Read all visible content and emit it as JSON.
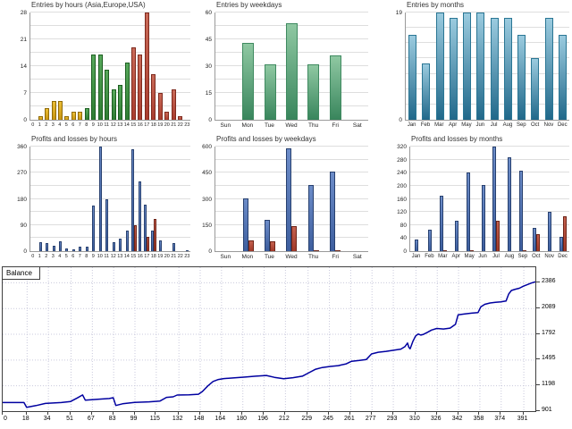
{
  "palette": {
    "asia": {
      "top": "#ebbe36",
      "bottom": "#c79410",
      "border": "#8f6a08"
    },
    "europe": {
      "top": "#57a85b",
      "bottom": "#2e7d32",
      "border": "#1c5e20"
    },
    "usa": {
      "top": "#c96a58",
      "bottom": "#a93c2e",
      "border": "#7e2a1e"
    },
    "entries_green": {
      "top": "#8fc8a2",
      "bottom": "#38855c",
      "border": "#3f8a60"
    },
    "entries_blue": {
      "top": "#9bcbdf",
      "bottom": "#20688a",
      "border": "#2a7694"
    },
    "profit_blue": {
      "top": "#6c8cc8",
      "bottom": "#3d5e9e",
      "border": "#27406f"
    },
    "loss_red": {
      "top": "#c4614f",
      "bottom": "#a03828",
      "border": "#6e2418"
    },
    "grid": "#dedede",
    "axis": "#9a9a9a",
    "balance_grid": "#c9c9dc",
    "balance_border": "#404040"
  },
  "chart_data": [
    {
      "type": "bar",
      "title": "Entries by hours (Asia,Europe,USA)",
      "categories": [
        "0",
        "1",
        "2",
        "3",
        "4",
        "5",
        "6",
        "7",
        "8",
        "9",
        "10",
        "11",
        "12",
        "13",
        "14",
        "15",
        "16",
        "17",
        "18",
        "19",
        "20",
        "21",
        "22",
        "23"
      ],
      "ymax": 28,
      "grid_steps": 8,
      "y_ticks": [
        {
          "v": 28,
          "t": "28"
        },
        {
          "v": 21,
          "t": "21"
        },
        {
          "v": 14,
          "t": "14"
        },
        {
          "v": 7,
          "t": "7"
        },
        {
          "v": 0,
          "t": "0"
        }
      ],
      "series": [
        {
          "colors": [
            "asia",
            "asia",
            "asia",
            "asia",
            "asia",
            "asia",
            "asia",
            "asia",
            "europe",
            "europe",
            "europe",
            "europe",
            "europe",
            "europe",
            "europe",
            "usa",
            "usa",
            "usa",
            "usa",
            "usa",
            "usa",
            "usa",
            "usa",
            "usa"
          ],
          "values": [
            0,
            1,
            3,
            5,
            5,
            1,
            2,
            2,
            3,
            17,
            17,
            13,
            8,
            9,
            15,
            19,
            17,
            28,
            12,
            7,
            2,
            8,
            1,
            0
          ]
        }
      ]
    },
    {
      "type": "bar",
      "title": "Entries by weekdays",
      "categories": [
        "Sun",
        "Mon",
        "Tue",
        "Wed",
        "Thu",
        "Fri",
        "Sat"
      ],
      "ymax": 60,
      "grid_steps": 8,
      "y_ticks": [
        {
          "v": 60,
          "t": "60"
        },
        {
          "v": 45,
          "t": "45"
        },
        {
          "v": 30,
          "t": "30"
        },
        {
          "v": 15,
          "t": "15"
        },
        {
          "v": 0,
          "t": "0"
        }
      ],
      "series": [
        {
          "color": "entries_green",
          "values": [
            0,
            43,
            31,
            54,
            31,
            36,
            0
          ]
        }
      ]
    },
    {
      "type": "bar",
      "title": "Entries by months",
      "categories": [
        "Jan",
        "Feb",
        "Mar",
        "Apr",
        "May",
        "Jun",
        "Jul",
        "Aug",
        "Sep",
        "Oct",
        "Nov",
        "Dec"
      ],
      "ymax": 19,
      "grid_steps": 7,
      "y_ticks": [
        {
          "v": 19,
          "t": "19"
        },
        {
          "v": 0,
          "t": "0"
        }
      ],
      "series": [
        {
          "color": "entries_blue",
          "values": [
            15,
            10,
            19,
            18,
            19,
            19,
            18,
            18,
            15,
            11,
            18,
            15
          ]
        }
      ]
    },
    {
      "type": "bar",
      "title": "Profits and losses by hours",
      "categories": [
        "0",
        "1",
        "2",
        "3",
        "4",
        "5",
        "6",
        "7",
        "8",
        "9",
        "10",
        "11",
        "12",
        "13",
        "14",
        "15",
        "16",
        "17",
        "18",
        "19",
        "20",
        "21",
        "22",
        "23"
      ],
      "ymax": 360,
      "grid_steps": 8,
      "y_ticks": [
        {
          "v": 360,
          "t": "360"
        },
        {
          "v": 270,
          "t": "270"
        },
        {
          "v": 180,
          "t": "180"
        },
        {
          "v": 90,
          "t": "90"
        },
        {
          "v": 0,
          "t": "0"
        }
      ],
      "series": [
        {
          "color": "profit_blue",
          "values": [
            0,
            32,
            28,
            18,
            33,
            10,
            6,
            14,
            16,
            158,
            360,
            178,
            30,
            44,
            70,
            352,
            240,
            160,
            72,
            38,
            0,
            28,
            0,
            4
          ]
        },
        {
          "color": "loss_red",
          "values": [
            0,
            0,
            0,
            0,
            0,
            0,
            0,
            0,
            0,
            0,
            0,
            0,
            0,
            0,
            0,
            88,
            0,
            50,
            110,
            0,
            0,
            0,
            0,
            0
          ]
        }
      ]
    },
    {
      "type": "bar",
      "title": "Profits and losses by weekdays",
      "categories": [
        "Sun",
        "Mon",
        "Tue",
        "Wed",
        "Thu",
        "Fri",
        "Sat"
      ],
      "ymax": 600,
      "grid_steps": 8,
      "y_ticks": [
        {
          "v": 600,
          "t": "600"
        },
        {
          "v": 450,
          "t": "450"
        },
        {
          "v": 300,
          "t": "300"
        },
        {
          "v": 150,
          "t": "150"
        },
        {
          "v": 0,
          "t": "0"
        }
      ],
      "series": [
        {
          "color": "profit_blue",
          "values": [
            0,
            300,
            180,
            590,
            380,
            455,
            0
          ]
        },
        {
          "color": "loss_red",
          "values": [
            0,
            60,
            55,
            145,
            4,
            6,
            0
          ]
        }
      ]
    },
    {
      "type": "bar",
      "title": "Profits and losses by months",
      "categories": [
        "Jan",
        "Feb",
        "Mar",
        "Apr",
        "May",
        "Jun",
        "Jul",
        "Aug",
        "Sep",
        "Oct",
        "Nov",
        "Dec"
      ],
      "ymax": 320,
      "grid_steps": 8,
      "y_ticks": [
        {
          "v": 320,
          "t": "320"
        },
        {
          "v": 280,
          "t": "280"
        },
        {
          "v": 240,
          "t": "240"
        },
        {
          "v": 200,
          "t": "200"
        },
        {
          "v": 160,
          "t": "160"
        },
        {
          "v": 120,
          "t": "120"
        },
        {
          "v": 80,
          "t": "80"
        },
        {
          "v": 40,
          "t": "40"
        },
        {
          "v": 0,
          "t": "0"
        }
      ],
      "series": [
        {
          "color": "profit_blue",
          "values": [
            35,
            65,
            170,
            93,
            242,
            202,
            320,
            288,
            247,
            72,
            120,
            45
          ]
        },
        {
          "color": "loss_red",
          "values": [
            0,
            0,
            3,
            0,
            3,
            0,
            93,
            0,
            3,
            52,
            0,
            108
          ]
        }
      ]
    },
    {
      "type": "line",
      "title": "Balance",
      "line_color": "#0000a0",
      "x_domain": [
        0,
        400
      ],
      "y_domain": [
        901,
        2560
      ],
      "x_ticks": [
        0,
        18,
        34,
        51,
        67,
        83,
        99,
        115,
        132,
        148,
        164,
        180,
        196,
        212,
        229,
        245,
        261,
        277,
        293,
        310,
        326,
        342,
        358,
        374,
        391
      ],
      "y_ticks": [
        2386,
        2089,
        1792,
        1495,
        1198,
        901
      ],
      "points": [
        [
          0,
          1000
        ],
        [
          16,
          1000
        ],
        [
          18,
          945
        ],
        [
          25,
          965
        ],
        [
          32,
          990
        ],
        [
          44,
          1000
        ],
        [
          51,
          1012
        ],
        [
          56,
          1052
        ],
        [
          60,
          1088
        ],
        [
          62,
          1028
        ],
        [
          70,
          1036
        ],
        [
          80,
          1046
        ],
        [
          83,
          1056
        ],
        [
          85,
          966
        ],
        [
          90,
          986
        ],
        [
          99,
          1002
        ],
        [
          110,
          1008
        ],
        [
          118,
          1016
        ],
        [
          123,
          1060
        ],
        [
          128,
          1066
        ],
        [
          131,
          1086
        ],
        [
          140,
          1090
        ],
        [
          147,
          1096
        ],
        [
          150,
          1128
        ],
        [
          154,
          1192
        ],
        [
          158,
          1243
        ],
        [
          162,
          1266
        ],
        [
          166,
          1276
        ],
        [
          174,
          1284
        ],
        [
          182,
          1294
        ],
        [
          190,
          1304
        ],
        [
          198,
          1312
        ],
        [
          204,
          1290
        ],
        [
          211,
          1274
        ],
        [
          218,
          1286
        ],
        [
          225,
          1304
        ],
        [
          230,
          1344
        ],
        [
          235,
          1384
        ],
        [
          240,
          1404
        ],
        [
          246,
          1416
        ],
        [
          252,
          1426
        ],
        [
          258,
          1446
        ],
        [
          262,
          1476
        ],
        [
          268,
          1486
        ],
        [
          273,
          1496
        ],
        [
          277,
          1560
        ],
        [
          282,
          1580
        ],
        [
          288,
          1590
        ],
        [
          294,
          1604
        ],
        [
          299,
          1616
        ],
        [
          302,
          1644
        ],
        [
          304,
          1686
        ],
        [
          305,
          1638
        ],
        [
          306,
          1620
        ],
        [
          308,
          1704
        ],
        [
          310,
          1766
        ],
        [
          312,
          1790
        ],
        [
          314,
          1778
        ],
        [
          316,
          1786
        ],
        [
          319,
          1810
        ],
        [
          322,
          1836
        ],
        [
          326,
          1854
        ],
        [
          331,
          1848
        ],
        [
          336,
          1858
        ],
        [
          340,
          1902
        ],
        [
          342,
          2012
        ],
        [
          347,
          2022
        ],
        [
          352,
          2030
        ],
        [
          357,
          2038
        ],
        [
          359,
          2102
        ],
        [
          362,
          2132
        ],
        [
          366,
          2148
        ],
        [
          370,
          2155
        ],
        [
          374,
          2161
        ],
        [
          378,
          2170
        ],
        [
          380,
          2252
        ],
        [
          382,
          2292
        ],
        [
          385,
          2306
        ],
        [
          388,
          2318
        ],
        [
          391,
          2342
        ],
        [
          394,
          2360
        ],
        [
          397,
          2378
        ],
        [
          400,
          2392
        ]
      ]
    }
  ]
}
